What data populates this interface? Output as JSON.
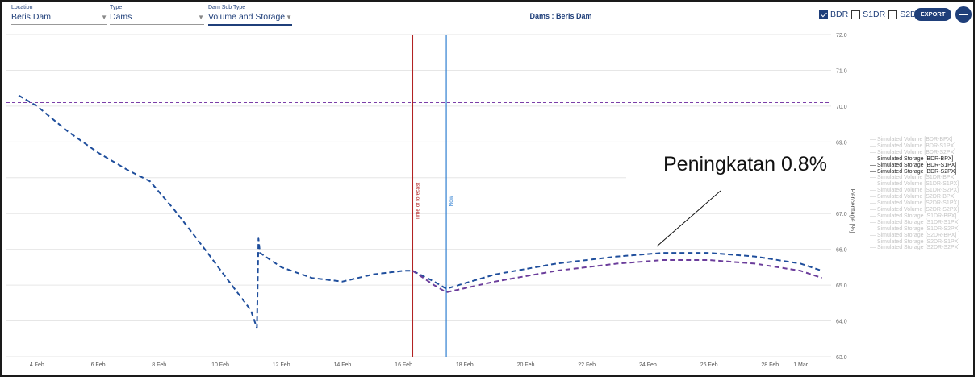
{
  "filters": {
    "location": {
      "label": "Location",
      "value": "Beris Dam"
    },
    "type": {
      "label": "Type",
      "value": "Dams"
    },
    "sub_type": {
      "label": "Dam Sub Type",
      "value": "Volume and Storage"
    }
  },
  "title": "Dams : Beris Dam",
  "checkboxes": [
    {
      "label": "BDR",
      "checked": true
    },
    {
      "label": "S1DR",
      "checked": false
    },
    {
      "label": "S2DR",
      "checked": false
    }
  ],
  "export_label": "EXPORT",
  "icons": {
    "collapse": "minus-circle-icon",
    "checkbox": "checkbox-icon",
    "dropdown": "chevron-down-icon"
  },
  "colors": {
    "primary": "#1f3f7a",
    "series_bdr_bpx": "#1f4e9c",
    "series_bdr_s1px": "#6b3d9b",
    "reference_line": "#7b3fa8",
    "forecast_line": "#b22222",
    "now_line": "#2f7fd1"
  },
  "legend": [
    {
      "label": "Simulated Volume [BDR-BPX]",
      "active": false
    },
    {
      "label": "Simulated Volume [BDR-S1PX]",
      "active": false
    },
    {
      "label": "Simulated Volume [BDR-S2PX]",
      "active": false
    },
    {
      "label": "Simulated Storage [BDR-BPX]",
      "active": true
    },
    {
      "label": "Simulated Storage [BDR-S1PX]",
      "active": true
    },
    {
      "label": "Simulated Storage [BDR-S2PX]",
      "active": true
    },
    {
      "label": "Simulated Volume [S1DR-BPX]",
      "active": false
    },
    {
      "label": "Simulated Volume [S1DR-S1PX]",
      "active": false
    },
    {
      "label": "Simulated Volume [S1DR-S2PX]",
      "active": false
    },
    {
      "label": "Simulated Volume [S2DR-BPX]",
      "active": false
    },
    {
      "label": "Simulated Volume [S2DR-S1PX]",
      "active": false
    },
    {
      "label": "Simulated Volume [S2DR-S2PX]",
      "active": false
    },
    {
      "label": "Simulated Storage [S1DR-BPX]",
      "active": false
    },
    {
      "label": "Simulated Storage [S1DR-S1PX]",
      "active": false
    },
    {
      "label": "Simulated Storage [S1DR-S2PX]",
      "active": false
    },
    {
      "label": "Simulated Storage [S2DR-BPX]",
      "active": false
    },
    {
      "label": "Simulated Storage [S2DR-S1PX]",
      "active": false
    },
    {
      "label": "Simulated Storage [S2DR-S2PX]",
      "active": false
    }
  ],
  "annotation": "Peningkatan 0.8%",
  "chart_data": {
    "type": "line",
    "ylabel": "Percentage [%]",
    "ylim": [
      63.0,
      72.0
    ],
    "yticks": [
      "63.0",
      "64.0",
      "65.0",
      "66.0",
      "67.0",
      "68.0",
      "69.0",
      "70.0",
      "71.0",
      "72.0"
    ],
    "xlim": [
      3,
      30
    ],
    "xticks": [
      {
        "x": 4,
        "label": "4 Feb"
      },
      {
        "x": 6,
        "label": "6 Feb"
      },
      {
        "x": 8,
        "label": "8 Feb"
      },
      {
        "x": 10,
        "label": "10 Feb"
      },
      {
        "x": 12,
        "label": "12 Feb"
      },
      {
        "x": 14,
        "label": "14 Feb"
      },
      {
        "x": 16,
        "label": "16 Feb"
      },
      {
        "x": 18,
        "label": "18 Feb"
      },
      {
        "x": 20,
        "label": "20 Feb"
      },
      {
        "x": 22,
        "label": "22 Feb"
      },
      {
        "x": 24,
        "label": "24 Feb"
      },
      {
        "x": 26,
        "label": "26 Feb"
      },
      {
        "x": 28,
        "label": "28 Feb"
      },
      {
        "x": 29,
        "label": "1 Mar"
      }
    ],
    "grid": true,
    "reference_line": 70.1,
    "vertical_lines": [
      {
        "x": 16.3,
        "label": "Time of forecast"
      },
      {
        "x": 17.4,
        "label": "Now"
      }
    ],
    "series": [
      {
        "name": "Simulated Storage [BDR-BPX]",
        "x": [
          3.4,
          4.0,
          5.0,
          6.0,
          7.0,
          7.7,
          8.5,
          9.5,
          10.2,
          11.0,
          11.2,
          11.25,
          11.3,
          12.0,
          13.0,
          14.0,
          15.0,
          16.0,
          16.3,
          17.0,
          17.4,
          19.0,
          21.0,
          23.0,
          24.5,
          26.0,
          27.5,
          29.0,
          29.7
        ],
        "y": [
          70.3,
          70.0,
          69.3,
          68.7,
          68.2,
          67.9,
          67.1,
          66.0,
          65.2,
          64.3,
          63.8,
          66.3,
          65.9,
          65.5,
          65.2,
          65.1,
          65.3,
          65.4,
          65.4,
          65.1,
          64.9,
          65.3,
          65.6,
          65.8,
          65.9,
          65.9,
          65.8,
          65.6,
          65.4
        ]
      },
      {
        "name": "Simulated Storage [BDR-S1PX]",
        "x": [
          16.3,
          17.0,
          17.4,
          19.0,
          21.0,
          23.0,
          24.5,
          26.0,
          27.5,
          29.0,
          29.7
        ],
        "y": [
          65.4,
          65.0,
          64.8,
          65.1,
          65.4,
          65.6,
          65.7,
          65.7,
          65.6,
          65.4,
          65.2
        ]
      }
    ]
  }
}
